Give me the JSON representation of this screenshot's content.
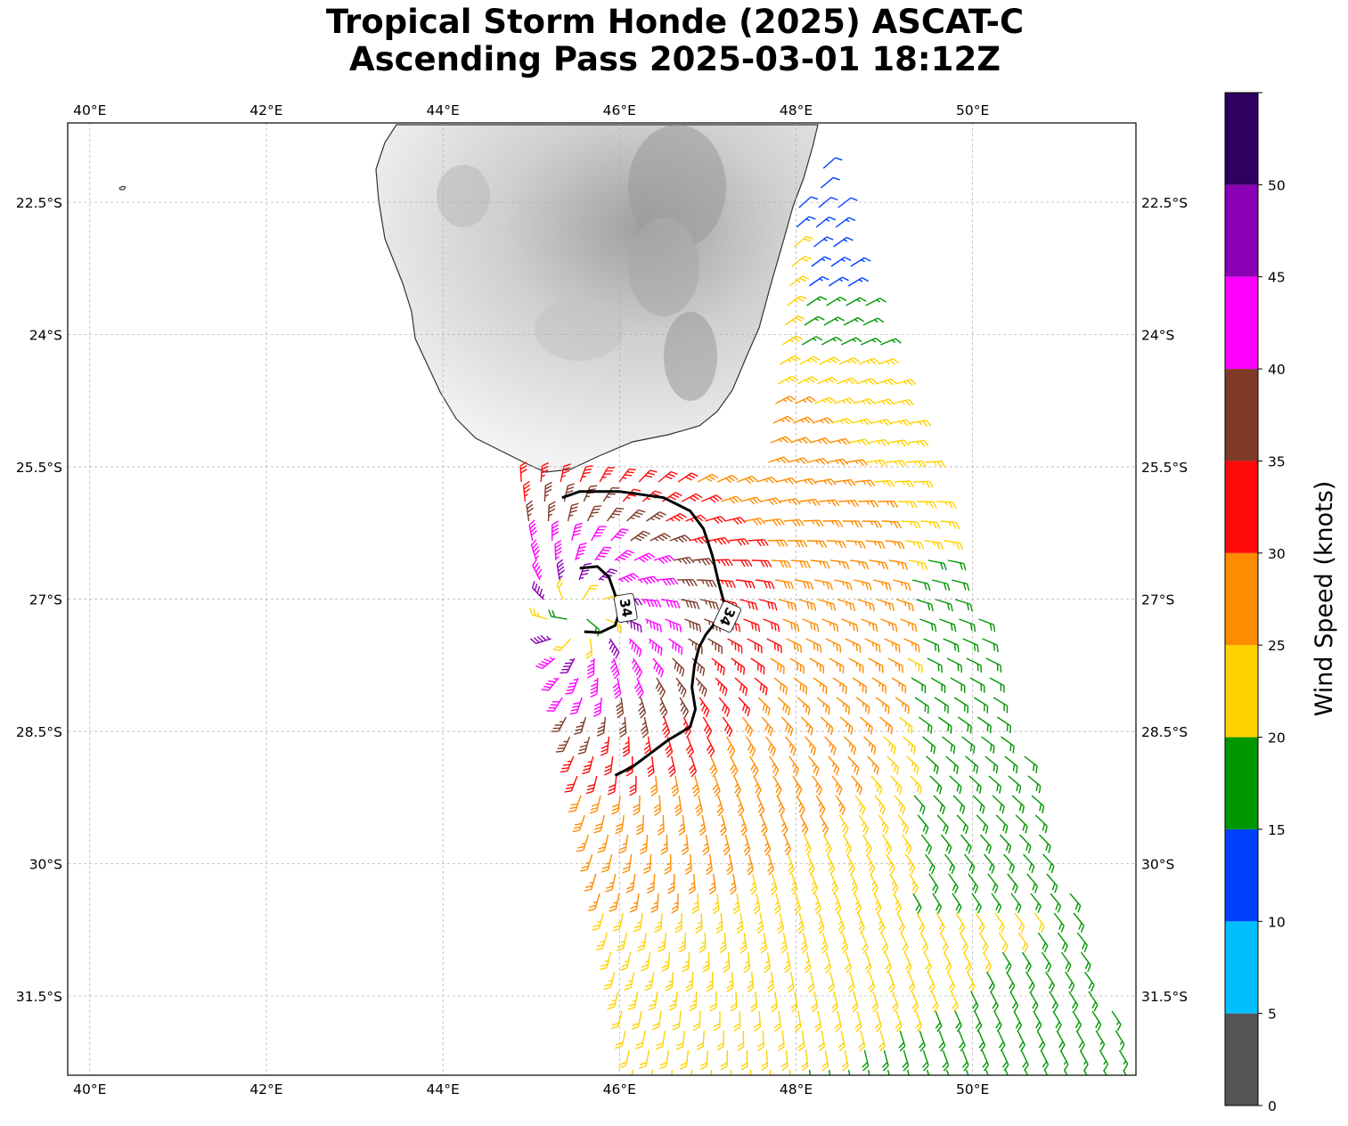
{
  "title": {
    "line1": "Tropical Storm Honde (2025) ASCAT-C",
    "line2": "Ascending Pass 2025-03-01 18:12Z"
  },
  "map": {
    "lon_range": [
      39.75,
      51.85
    ],
    "lat_range": [
      -32.4,
      -21.6
    ],
    "lon_ticks": [
      {
        "value": 40,
        "label": "40°E"
      },
      {
        "value": 42,
        "label": "42°E"
      },
      {
        "value": 44,
        "label": "44°E"
      },
      {
        "value": 46,
        "label": "46°E"
      },
      {
        "value": 48,
        "label": "48°E"
      },
      {
        "value": 50,
        "label": "50°E"
      }
    ],
    "lat_ticks": [
      {
        "value": -22.5,
        "label": "22.5°S"
      },
      {
        "value": -24,
        "label": "24°S"
      },
      {
        "value": -25.5,
        "label": "25.5°S"
      },
      {
        "value": -27,
        "label": "27°S"
      },
      {
        "value": -28.5,
        "label": "28.5°S"
      },
      {
        "value": -30,
        "label": "30°S"
      },
      {
        "value": -31.5,
        "label": "31.5°S"
      }
    ],
    "gridlines": true,
    "land_shading": "grayscale-elevation",
    "storm_center": {
      "lon": 45.55,
      "lat": -27.2
    },
    "contour_34kt": {
      "level_label": "34",
      "outer_path": [
        [
          45.35,
          -25.85
        ],
        [
          45.55,
          -25.78
        ],
        [
          46.0,
          -25.78
        ],
        [
          46.5,
          -25.85
        ],
        [
          46.8,
          -26.0
        ],
        [
          46.95,
          -26.2
        ],
        [
          47.05,
          -26.5
        ],
        [
          47.12,
          -26.8
        ],
        [
          47.2,
          -27.1
        ],
        [
          47.1,
          -27.25
        ],
        [
          46.98,
          -27.4
        ],
        [
          46.9,
          -27.55
        ],
        [
          46.85,
          -27.75
        ],
        [
          46.82,
          -28.0
        ],
        [
          46.86,
          -28.25
        ],
        [
          46.8,
          -28.45
        ],
        [
          46.55,
          -28.6
        ],
        [
          46.35,
          -28.75
        ],
        [
          46.15,
          -28.9
        ],
        [
          45.95,
          -29.0
        ]
      ],
      "inner_path": [
        [
          45.55,
          -26.65
        ],
        [
          45.75,
          -26.63
        ],
        [
          45.88,
          -26.75
        ],
        [
          45.95,
          -26.95
        ],
        [
          46.0,
          -27.15
        ],
        [
          45.95,
          -27.3
        ],
        [
          45.78,
          -27.38
        ],
        [
          45.6,
          -27.37
        ]
      ]
    }
  },
  "colorbar": {
    "label": "Wind Speed (knots)",
    "max": 55,
    "bins": [
      {
        "from": 0,
        "to": 5,
        "color": "#555555"
      },
      {
        "from": 5,
        "to": 10,
        "color": "#00bfff"
      },
      {
        "from": 10,
        "to": 15,
        "color": "#0040ff"
      },
      {
        "from": 15,
        "to": 20,
        "color": "#009600"
      },
      {
        "from": 20,
        "to": 25,
        "color": "#ffd200"
      },
      {
        "from": 25,
        "to": 30,
        "color": "#ff8c00"
      },
      {
        "from": 30,
        "to": 35,
        "color": "#ff0a0a"
      },
      {
        "from": 35,
        "to": 40,
        "color": "#7f3a28"
      },
      {
        "from": 40,
        "to": 45,
        "color": "#ff00ff"
      },
      {
        "from": 45,
        "to": 50,
        "color": "#8a00b4"
      },
      {
        "from": 50,
        "to": 55,
        "color": "#2e0060"
      }
    ],
    "tick_labels": [
      "0",
      "5",
      "10",
      "15",
      "20",
      "25",
      "30",
      "35",
      "40",
      "45",
      "50"
    ]
  }
}
